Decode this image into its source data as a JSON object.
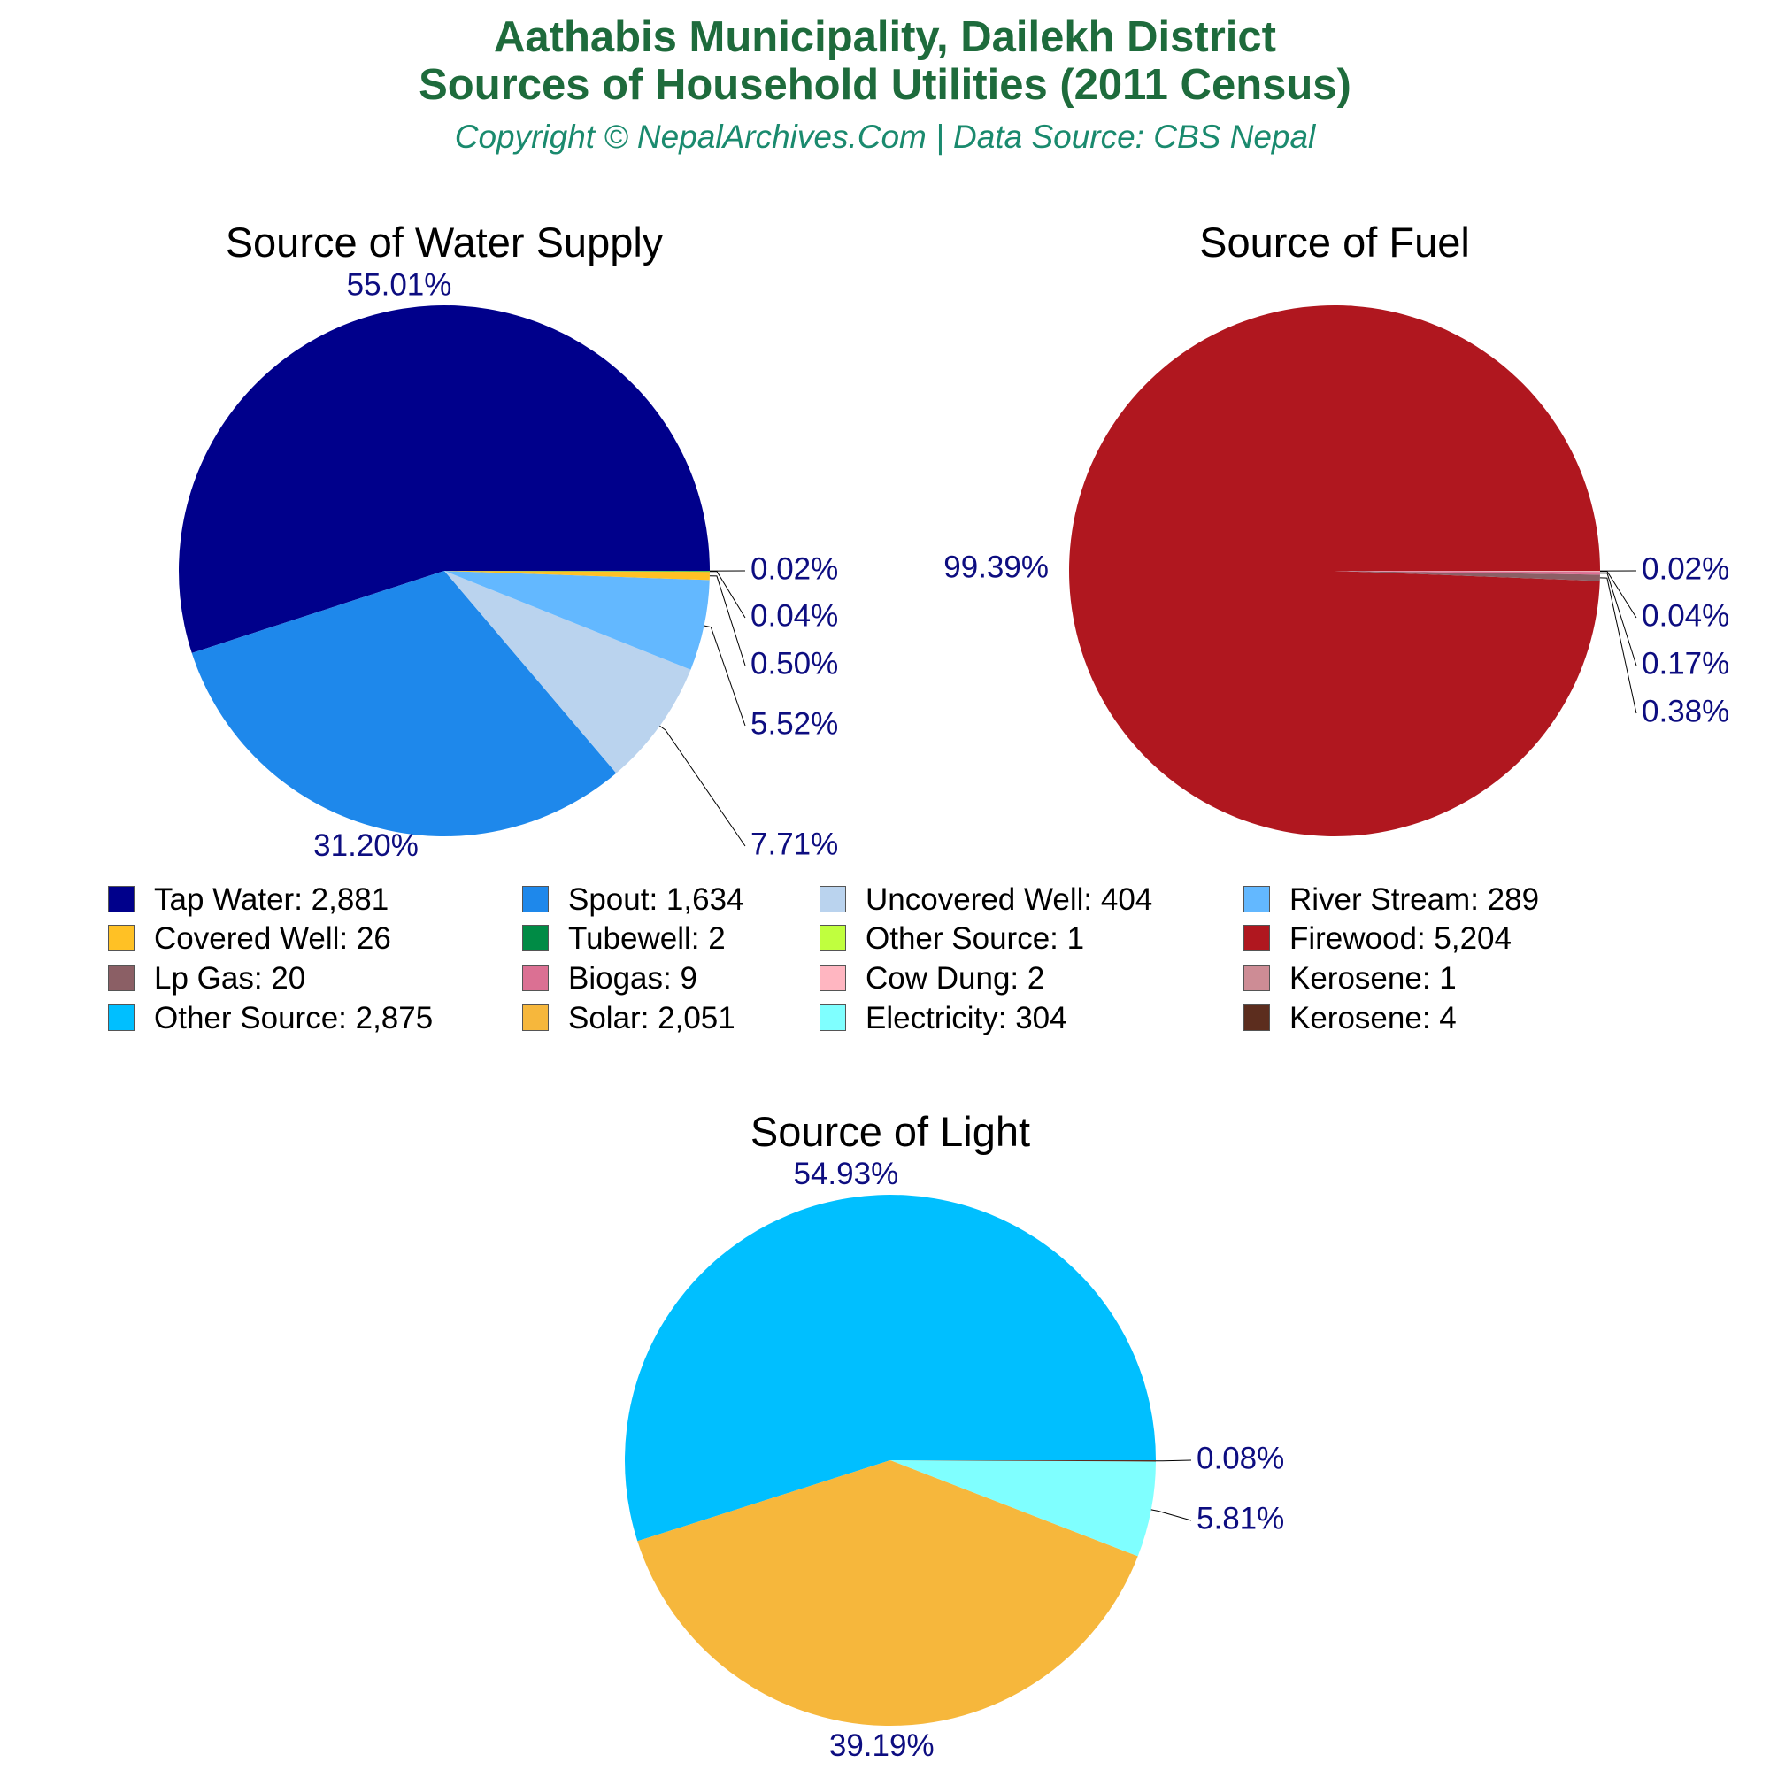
{
  "header": {
    "title_line1": "Aathabis Municipality, Dailekh District",
    "title_line2": "Sources of Household Utilities (2011 Census)",
    "subtitle": "Copyright © NepalArchives.Com | Data Source: CBS Nepal"
  },
  "colors": {
    "title": "#1e6b3c",
    "subtitle": "#1a8a6e",
    "percent_label": "#0d0d80",
    "leader_line": "#000000"
  },
  "chart_data": [
    {
      "type": "pie",
      "title": "Source of Water Supply",
      "slices": [
        {
          "label": "Tap Water",
          "value": 2881,
          "percent": "55.01%",
          "color": "#00008b"
        },
        {
          "label": "Spout",
          "value": 1634,
          "percent": "31.20%",
          "color": "#1e88eb"
        },
        {
          "label": "Uncovered Well",
          "value": 404,
          "percent": "7.71%",
          "color": "#bad3ee"
        },
        {
          "label": "River Stream",
          "value": 289,
          "percent": "5.52%",
          "color": "#63b8ff"
        },
        {
          "label": "Covered Well",
          "value": 26,
          "percent": "0.50%",
          "color": "#ffc125"
        },
        {
          "label": "Tubewell",
          "value": 2,
          "percent": "0.04%",
          "color": "#008b45"
        },
        {
          "label": "Other Source",
          "value": 1,
          "percent": "0.02%",
          "color": "#c0ff3e"
        }
      ]
    },
    {
      "type": "pie",
      "title": "Source of Fuel",
      "slices": [
        {
          "label": "Firewood",
          "value": 5204,
          "percent": "99.39%",
          "color": "#b0171f"
        },
        {
          "label": "Lp Gas",
          "value": 20,
          "percent": "0.38%",
          "color": "#8b5f65"
        },
        {
          "label": "Biogas",
          "value": 9,
          "percent": "0.17%",
          "color": "#db7093"
        },
        {
          "label": "Cow Dung",
          "value": 2,
          "percent": "0.04%",
          "color": "#ffb6c1"
        },
        {
          "label": "Kerosene",
          "value": 1,
          "percent": "0.02%",
          "color": "#cd8c95"
        }
      ]
    },
    {
      "type": "pie",
      "title": "Source of Light",
      "slices": [
        {
          "label": "Other Source",
          "value": 2875,
          "percent": "54.93%",
          "color": "#00bfff"
        },
        {
          "label": "Solar",
          "value": 2051,
          "percent": "39.19%",
          "color": "#f6b73c"
        },
        {
          "label": "Electricity",
          "value": 304,
          "percent": "5.81%",
          "color": "#7fffff"
        },
        {
          "label": "Kerosene",
          "value": 4,
          "percent": "0.08%",
          "color": "#5c2d1e"
        }
      ]
    }
  ],
  "legend": {
    "items": [
      {
        "text": "Tap Water: 2,881",
        "color": "#00008b"
      },
      {
        "text": "Spout: 1,634",
        "color": "#1e88eb"
      },
      {
        "text": "Uncovered Well: 404",
        "color": "#bad3ee"
      },
      {
        "text": "River Stream: 289",
        "color": "#63b8ff"
      },
      {
        "text": "Covered Well: 26",
        "color": "#ffc125"
      },
      {
        "text": "Tubewell: 2",
        "color": "#008b45"
      },
      {
        "text": "Other Source: 1",
        "color": "#c0ff3e"
      },
      {
        "text": "Firewood: 5,204",
        "color": "#b0171f"
      },
      {
        "text": "Lp Gas: 20",
        "color": "#8b5f65"
      },
      {
        "text": "Biogas: 9",
        "color": "#db7093"
      },
      {
        "text": "Cow Dung: 2",
        "color": "#ffb6c1"
      },
      {
        "text": "Kerosene: 1",
        "color": "#cd8c95"
      },
      {
        "text": "Other Source: 2,875",
        "color": "#00bfff"
      },
      {
        "text": "Solar: 2,051",
        "color": "#f6b73c"
      },
      {
        "text": "Electricity: 304",
        "color": "#7fffff"
      },
      {
        "text": "Kerosene: 4",
        "color": "#5c2d1e"
      }
    ]
  }
}
